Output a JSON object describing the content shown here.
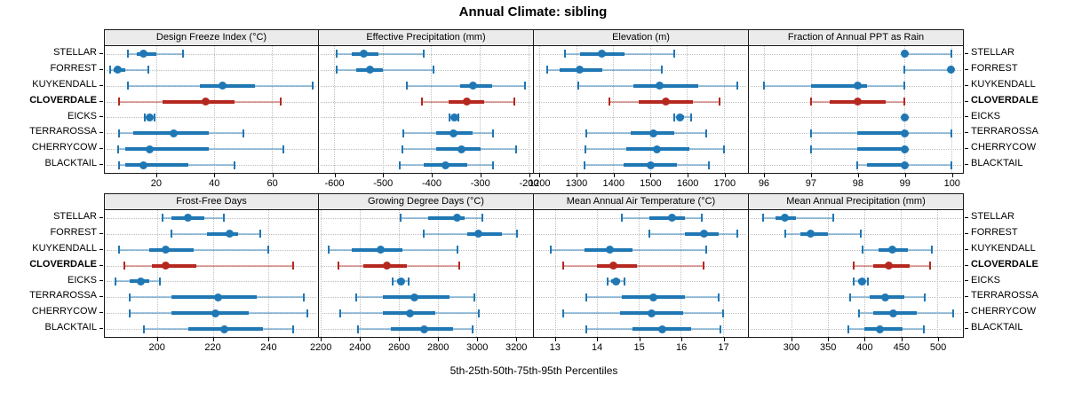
{
  "title": "Annual Climate: sibling",
  "axis_label": "5th-25th-50th-75th-95th Percentiles",
  "stations": [
    "STELLAR",
    "FORREST",
    "KUYKENDALL",
    "CLOVERDALE",
    "EICKS",
    "TERRAROSSA",
    "CHERRYCOW",
    "BLACKTAIL"
  ],
  "highlight_station": "CLOVERDALE",
  "colors": {
    "series": "#1f77b4",
    "series_light": "rgba(31,119,180,0.42)",
    "highlight": "#b5281f",
    "highlight_light": "rgba(181,40,31,0.40)",
    "strip_bg": "#ebebeb",
    "panel_border": "#1a1a1a",
    "grid": "#bfbfbf"
  },
  "chart_data": {
    "type": "dotplot-percentiles",
    "layout": "trellis 2 rows x 4 cols, shared station categories, grid dotted on",
    "percentiles": [
      5,
      25,
      50,
      75,
      95
    ],
    "panels": [
      {
        "title": "Design Freeze Index (°C)",
        "domain": [
          2,
          76
        ],
        "ticks": [
          20,
          40,
          60
        ],
        "tick_labels": [
          "20",
          "40",
          "60"
        ],
        "values": {
          "STELLAR": [
            10,
            13,
            15.5,
            20,
            29
          ],
          "FORREST": [
            4,
            5,
            6.5,
            9,
            17
          ],
          "KUYKENDALL": [
            10,
            35,
            43,
            54,
            74
          ],
          "CLOVERDALE": [
            7,
            22,
            37,
            47,
            63
          ],
          "EICKS": [
            16,
            17,
            17.7,
            18.5,
            19.3
          ],
          "TERRAROSSA": [
            7,
            12,
            26,
            38,
            50
          ],
          "CHERRYCOW": [
            6.5,
            9,
            17.5,
            38,
            64
          ],
          "BLACKTAIL": [
            7,
            9,
            15.5,
            31,
            47
          ]
        }
      },
      {
        "title": "Effective Precipitation (mm)",
        "domain": [
          -632,
          -190
        ],
        "ticks": [
          -600,
          -500,
          -400,
          -300,
          -200
        ],
        "tick_labels": [
          "-600",
          "-500",
          "-400",
          "-300",
          "-200"
        ],
        "values": {
          "STELLAR": [
            -595,
            -565,
            -540,
            -510,
            -415
          ],
          "FORREST": [
            -595,
            -555,
            -527,
            -500,
            -395
          ],
          "KUYKENDALL": [
            -450,
            -340,
            -313,
            -275,
            -207
          ],
          "CLOVERDALE": [
            -420,
            -365,
            -327,
            -290,
            -228
          ],
          "EICKS": [
            -362,
            -357,
            -353,
            -349,
            -344
          ],
          "TERRAROSSA": [
            -458,
            -390,
            -355,
            -315,
            -272
          ],
          "CHERRYCOW": [
            -460,
            -390,
            -337,
            -298,
            -225
          ],
          "BLACKTAIL": [
            -465,
            -415,
            -370,
            -325,
            -273
          ]
        }
      },
      {
        "title": "Elevation (m)",
        "domain": [
          1185,
          1765
        ],
        "ticks": [
          1200,
          1300,
          1400,
          1500,
          1600,
          1700
        ],
        "tick_labels": [
          "1200",
          "1300",
          "1400",
          "1500",
          "1600",
          "1700"
        ],
        "values": {
          "STELLAR": [
            1270,
            1310,
            1368,
            1430,
            1565
          ],
          "FORREST": [
            1220,
            1255,
            1308,
            1370,
            1532
          ],
          "KUYKENDALL": [
            1305,
            1455,
            1525,
            1630,
            1735
          ],
          "CLOVERDALE": [
            1390,
            1470,
            1542,
            1615,
            1688
          ],
          "EICKS": [
            1565,
            1572,
            1580,
            1592,
            1612
          ],
          "TERRAROSSA": [
            1327,
            1448,
            1508,
            1565,
            1652
          ],
          "CHERRYCOW": [
            1325,
            1435,
            1518,
            1605,
            1700
          ],
          "BLACKTAIL": [
            1322,
            1428,
            1502,
            1572,
            1658
          ]
        }
      },
      {
        "title": "Fraction of Annual PPT as Rain",
        "domain": [
          95.68,
          100.25
        ],
        "ticks": [
          96,
          97,
          98,
          99,
          100
        ],
        "tick_labels": [
          "96",
          "97",
          "98",
          "99",
          "100"
        ],
        "values": {
          "STELLAR": [
            99,
            99,
            99,
            99,
            100
          ],
          "FORREST": [
            99,
            100,
            100,
            100,
            100
          ],
          "KUYKENDALL": [
            96,
            97,
            98,
            98.2,
            99
          ],
          "CLOVERDALE": [
            97,
            97.4,
            98,
            98.6,
            99
          ],
          "EICKS": [
            99,
            99,
            99,
            99,
            99
          ],
          "TERRAROSSA": [
            97,
            98,
            99,
            99,
            100
          ],
          "CHERRYCOW": [
            97,
            98,
            99,
            99,
            99
          ],
          "BLACKTAIL": [
            98,
            98.2,
            99,
            99,
            100
          ]
        }
      },
      {
        "title": "Frost-Free Days",
        "domain": [
          181,
          258
        ],
        "ticks": [
          200,
          220,
          240
        ],
        "tick_labels": [
          "200",
          "220",
          "240"
        ],
        "values": {
          "STELLAR": [
            202,
            205,
            211,
            217,
            224
          ],
          "FORREST": [
            205,
            218,
            226,
            229,
            237
          ],
          "KUYKENDALL": [
            186,
            197,
            203,
            213,
            240
          ],
          "CLOVERDALE": [
            188,
            198,
            203,
            214,
            249
          ],
          "EICKS": [
            185,
            190,
            194,
            197,
            201
          ],
          "TERRAROSSA": [
            190,
            205,
            222,
            236,
            253
          ],
          "CHERRYCOW": [
            190,
            205,
            221,
            233,
            254
          ],
          "BLACKTAIL": [
            195,
            211,
            224,
            238,
            249
          ]
        }
      },
      {
        "title": "Growing Degree Days (°C)",
        "domain": [
          2190,
          3290
        ],
        "ticks": [
          2200,
          2400,
          2600,
          2800,
          3000,
          3200
        ],
        "tick_labels": [
          "2200",
          "2400",
          "2600",
          "2800",
          "3000",
          "3200"
        ],
        "values": {
          "STELLAR": [
            2610,
            2750,
            2900,
            2940,
            3030
          ],
          "FORREST": [
            2730,
            2950,
            3010,
            3130,
            3210
          ],
          "KUYKENDALL": [
            2240,
            2360,
            2505,
            2620,
            2900
          ],
          "CLOVERDALE": [
            2290,
            2420,
            2540,
            2640,
            2910
          ],
          "EICKS": [
            2570,
            2590,
            2610,
            2630,
            2650
          ],
          "TERRAROSSA": [
            2380,
            2520,
            2680,
            2860,
            2990
          ],
          "CHERRYCOW": [
            2300,
            2520,
            2660,
            2790,
            3010
          ],
          "BLACKTAIL": [
            2390,
            2560,
            2730,
            2880,
            2980
          ]
        }
      },
      {
        "title": "Mean Annual Air Temperature (°C)",
        "domain": [
          12.5,
          17.6
        ],
        "ticks": [
          13,
          14,
          15,
          16,
          17
        ],
        "tick_labels": [
          "13",
          "14",
          "15",
          "16",
          "17"
        ],
        "values": {
          "STELLAR": [
            14.6,
            15.25,
            15.8,
            16.1,
            16.5
          ],
          "FORREST": [
            15.25,
            16.1,
            16.55,
            16.9,
            17.35
          ],
          "KUYKENDALL": [
            12.9,
            13.7,
            14.3,
            14.85,
            16.6
          ],
          "CLOVERDALE": [
            13.2,
            14.0,
            14.4,
            14.95,
            16.55
          ],
          "EICKS": [
            14.25,
            14.35,
            14.45,
            14.55,
            14.65
          ],
          "TERRAROSSA": [
            13.75,
            14.6,
            15.35,
            16.1,
            16.9
          ],
          "CHERRYCOW": [
            13.2,
            14.55,
            15.3,
            16.05,
            17.0
          ],
          "BLACKTAIL": [
            13.75,
            14.85,
            15.55,
            16.25,
            16.95
          ]
        }
      },
      {
        "title": "Mean Annual Precipitation (mm)",
        "domain": [
          242,
          535
        ],
        "ticks": [
          300,
          350,
          400,
          450,
          500
        ],
        "tick_labels": [
          "300",
          "350",
          "400",
          "450",
          "500"
        ],
        "values": {
          "STELLAR": [
            262,
            278,
            291,
            307,
            357
          ],
          "FORREST": [
            292,
            312,
            327,
            350,
            395
          ],
          "KUYKENDALL": [
            398,
            420,
            438,
            460,
            492
          ],
          "CLOVERDALE": [
            385,
            412,
            433,
            462,
            490
          ],
          "EICKS": [
            385,
            391,
            397,
            401,
            405
          ],
          "TERRAROSSA": [
            380,
            407,
            429,
            455,
            483
          ],
          "CHERRYCOW": [
            393,
            412,
            440,
            472,
            522
          ],
          "BLACKTAIL": [
            378,
            400,
            421,
            452,
            482
          ]
        }
      }
    ]
  }
}
